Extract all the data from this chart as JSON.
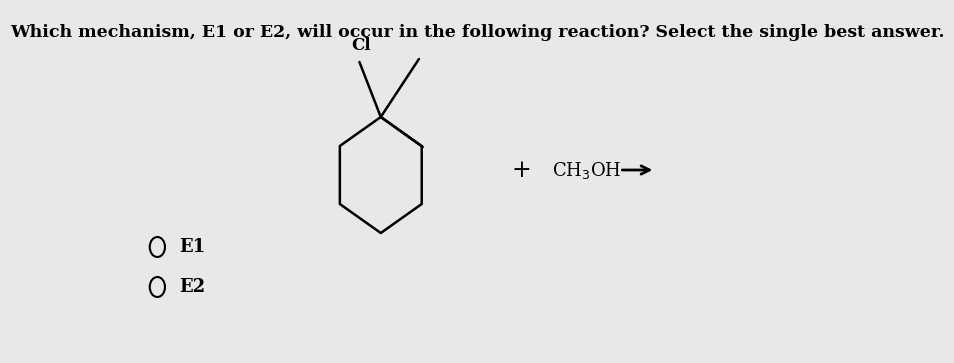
{
  "title": "Which mechanism, E1 or E2, will occur in the following reaction? Select the single best answer.",
  "title_fontsize": 12.5,
  "bg_color": "#e8e8e8",
  "text_color": "#000000",
  "options": [
    "E1",
    "E2"
  ],
  "option_fontsize": 13,
  "cl_label": "Cl"
}
